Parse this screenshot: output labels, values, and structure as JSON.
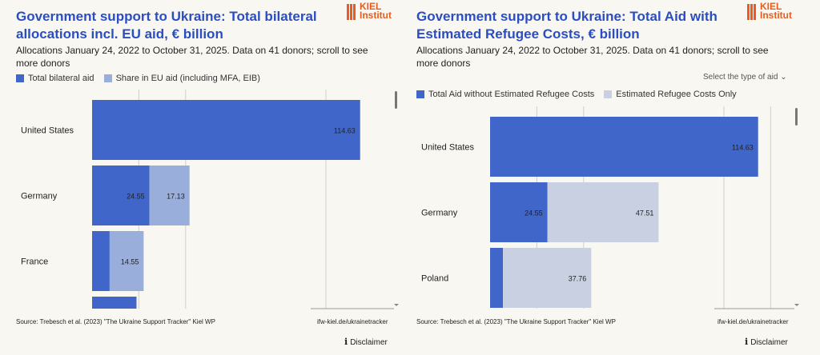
{
  "colors": {
    "title": "#2a4ec2",
    "bar_primary": "#3f66c8",
    "bar_eu": "#9aaedc",
    "bar_refugee": "#c8d0e2",
    "logo": "#ea5b1c",
    "background": "#f9f7f1"
  },
  "logo": {
    "line1": "KIEL",
    "line2": "Institut"
  },
  "chart_data": [
    {
      "type": "bar",
      "orientation": "horizontal",
      "stacked": true,
      "title": "Government support to Ukraine: Total bilateral allocations incl. EU aid, € billion",
      "subtitle": "Allocations January 24, 2022 to October 31, 2025. Data on 41 donors; scroll to see more donors",
      "categories": [
        "United States",
        "Germany",
        "France",
        ""
      ],
      "series": [
        {
          "name": "Total bilateral aid",
          "values": [
            114.63,
            24.55,
            7.5,
            19.0
          ],
          "labels": [
            "114.63",
            "24.55",
            "",
            ""
          ]
        },
        {
          "name": "Share in EU aid (including MFA, EIB)",
          "values": [
            0,
            17.13,
            14.55,
            0
          ],
          "labels": [
            "",
            "17.13",
            "14.55",
            ""
          ]
        }
      ],
      "xlim": [
        0,
        130
      ],
      "grid": true,
      "source": "Source: Trebesch et al. (2023) \"The Ukraine Support Tracker\" Kiel WP",
      "site": "ifw-kiel.de/ukrainetracker",
      "disclaimer": "Disclaimer"
    },
    {
      "type": "bar",
      "orientation": "horizontal",
      "stacked": true,
      "title": "Government support to Ukraine: Total Aid with Estimated Refugee Costs, € billion",
      "subtitle": "Allocations January 24, 2022 to October 31, 2025. Data on 41 donors; scroll to see more donors",
      "selector_label": "Select the type of aid",
      "categories": [
        "United States",
        "Germany",
        "Poland"
      ],
      "series": [
        {
          "name": "Total Aid without Estimated Refugee Costs",
          "values": [
            114.63,
            24.55,
            5.5
          ],
          "labels": [
            "114.63",
            "24.55",
            ""
          ]
        },
        {
          "name": "Estimated Refugee Costs Only",
          "values": [
            0,
            47.51,
            37.76
          ],
          "labels": [
            "",
            "47.51",
            "37.76"
          ]
        }
      ],
      "xlim": [
        0,
        130
      ],
      "grid": true,
      "source": "Source: Trebesch et al. (2023) \"The Ukraine Support Tracker\" Kiel WP",
      "site": "ifw-kiel.de/ukrainetracker",
      "disclaimer": "Disclaimer"
    }
  ]
}
